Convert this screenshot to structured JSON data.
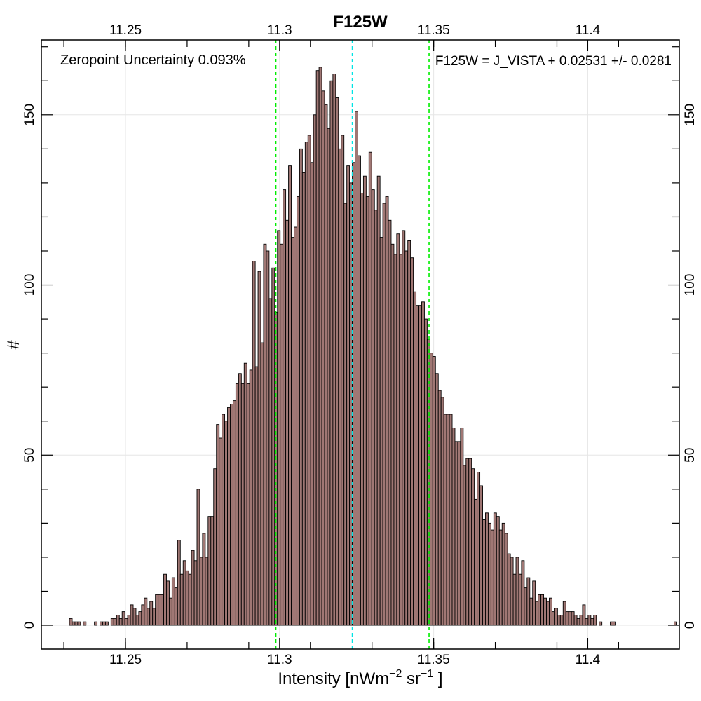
{
  "chart_data": {
    "type": "bar",
    "title": "F125W",
    "xlabel": {
      "base": "Intensity [nWm",
      "exp1": "−2",
      "mid": " sr",
      "exp2": "−1",
      "end": " ]"
    },
    "ylabel": "#",
    "annotations": {
      "left": "Zeropoint Uncertainty 0.093%",
      "right": "F125W = J_VISTA + 0.02531 +/- 0.0281"
    },
    "xlim": [
      11.2227,
      11.4297
    ],
    "ylim": [
      -7,
      172
    ],
    "x_ticks": [
      "11.25",
      "11.3",
      "11.35",
      "11.4"
    ],
    "x_tick_values": [
      11.25,
      11.3,
      11.35,
      11.4
    ],
    "y_ticks": [
      "0",
      "50",
      "100",
      "150"
    ],
    "y_tick_values": [
      0,
      50,
      100,
      150
    ],
    "grid": true,
    "bar_fill": "#a07774",
    "bar_stroke": "#000000",
    "reference_lines": [
      {
        "x": 11.2988,
        "color": "#00ee00",
        "style": "dashed"
      },
      {
        "x": 11.3236,
        "color": "#00e5e5",
        "style": "dashed"
      },
      {
        "x": 11.3485,
        "color": "#00ee00",
        "style": "dashed"
      }
    ],
    "bin_start": 11.2318,
    "bin_width": 0.0009,
    "values": [
      2,
      1,
      1,
      1,
      0,
      1,
      0,
      0,
      0,
      1,
      0,
      1,
      1,
      1,
      0,
      2,
      2,
      3,
      2,
      4,
      2,
      3,
      6,
      5,
      3,
      4,
      6,
      8,
      5,
      7,
      5,
      9,
      9,
      9,
      15,
      13,
      8,
      14,
      11,
      25,
      15,
      19,
      16,
      15,
      22,
      19,
      40,
      20,
      27,
      20,
      32,
      32,
      46,
      59,
      55,
      62,
      60,
      64,
      65,
      66,
      71,
      74,
      71,
      77,
      71,
      75,
      107,
      76,
      104,
      83,
      112,
      110,
      96,
      105,
      92,
      116,
      112,
      128,
      119,
      135,
      114,
      117,
      126,
      140,
      133,
      142,
      144,
      136,
      150,
      163,
      164,
      157,
      153,
      146,
      160,
      162,
      155,
      140,
      144,
      124,
      135,
      130,
      136,
      151,
      138,
      127,
      132,
      126,
      139,
      128,
      122,
      132,
      114,
      124,
      126,
      119,
      112,
      109,
      115,
      109,
      116,
      110,
      113,
      108,
      98,
      94,
      94,
      95,
      90,
      84,
      80,
      79,
      74,
      69,
      67,
      62,
      62,
      62,
      58,
      54,
      54,
      58,
      47,
      49,
      49,
      46,
      37,
      45,
      41,
      31,
      33,
      30,
      28,
      33,
      32,
      28,
      30,
      27,
      21,
      20,
      15,
      20,
      15,
      19,
      11,
      14,
      8,
      13,
      7,
      9,
      9,
      8,
      7,
      8,
      4,
      5,
      3,
      3,
      7,
      4,
      4,
      4,
      3,
      2,
      3,
      6,
      2,
      3,
      2,
      3,
      0,
      1,
      0,
      0,
      0,
      1,
      1,
      0,
      0,
      0,
      0,
      0,
      0,
      0,
      0,
      0,
      0,
      0,
      0,
      0,
      0,
      0,
      0,
      0,
      0,
      0,
      0,
      0,
      1,
      0,
      0,
      0,
      0,
      0,
      0,
      0,
      0,
      0,
      0,
      0,
      0,
      0,
      0,
      0,
      0,
      0,
      0,
      0,
      0,
      0,
      0,
      0,
      0,
      0,
      0,
      0,
      0,
      0,
      0,
      0,
      0,
      0,
      0,
      0,
      0,
      0,
      0,
      0,
      0,
      0,
      0,
      0,
      0,
      0
    ]
  }
}
